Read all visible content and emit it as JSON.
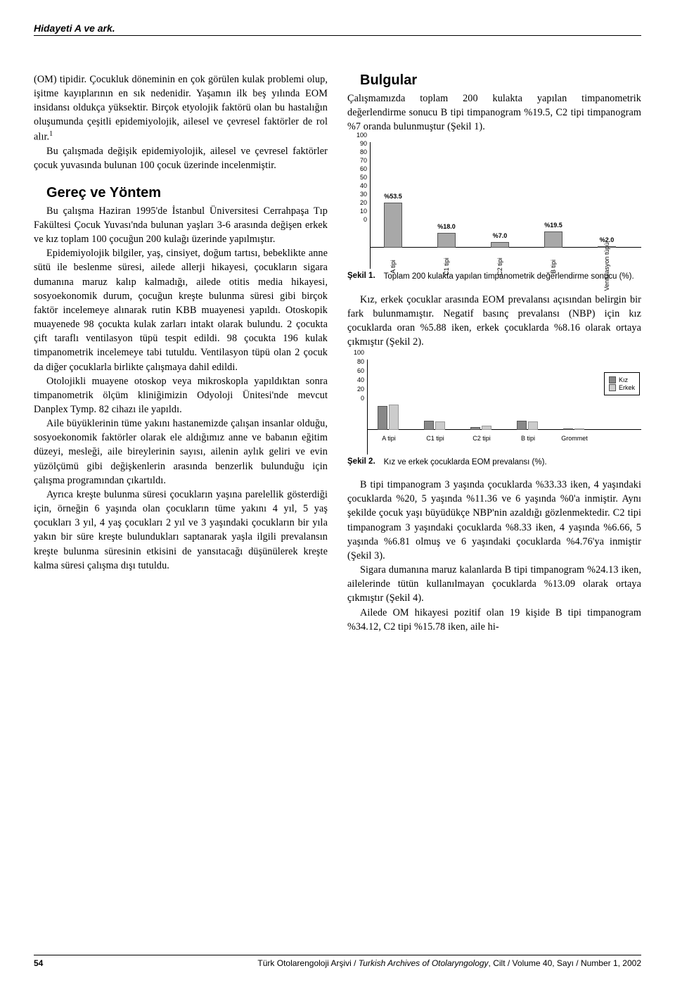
{
  "running_head": "Hidayeti A ve ark.",
  "left": {
    "p1": "(OM) tipidir. Çocukluk döneminin en çok görülen kulak problemi olup, işitme kayıplarının en sık nedenidir. Yaşamın ilk beş yılında EOM insidansı oldukça yüksektir. Birçok etyolojik faktörü olan bu hastalığın oluşumunda çeşitli epidemiyolojik, ailesel ve çevresel faktörler de rol alır.",
    "sup1": "1",
    "p2": "Bu çalışmada değişik epidemiyolojik, ailesel ve çevresel faktörler çocuk yuvasında bulunan 100 çocuk üzerinde incelenmiştir.",
    "h1": "Gereç ve Yöntem",
    "p3": "Bu çalışma Haziran 1995'de İstanbul Üniversitesi Cerrahpaşa Tıp Fakültesi Çocuk Yuvası'nda bulunan yaşları 3-6 arasında değişen erkek ve kız toplam 100 çocuğun 200 kulağı üzerinde yapılmıştır.",
    "p4": "Epidemiyolojik bilgiler, yaş, cinsiyet, doğum tartısı, bebeklikte anne sütü ile beslenme süresi, ailede allerji hikayesi, çocukların sigara dumanına maruz kalıp kalmadığı, ailede otitis media hikayesi, sosyoekonomik durum, çocuğun kreşte bulunma süresi gibi birçok faktör incelemeye alınarak rutin KBB muayenesi yapıldı. Otoskopik muayenede 98 çocukta kulak zarları intakt olarak bulundu. 2 çocukta çift taraflı ventilasyon tüpü tespit edildi. 98 çocukta 196 kulak timpanometrik incelemeye tabi tutuldu. Ventilasyon tüpü olan 2 çocuk da diğer çocuklarla birlikte çalışmaya dahil edildi.",
    "p5": "Otolojikli muayene otoskop veya mikroskopla yapıldıktan sonra timpanometrik ölçüm kliniğimizin Odyoloji Ünitesi'nde mevcut Danplex Tymp. 82 cihazı ile yapıldı.",
    "p6": "Aile büyüklerinin tüme yakını hastanemizde çalışan insanlar olduğu, sosyoekonomik faktörler olarak ele aldığımız anne ve babanın eğitim düzeyi, mesleği, aile bireylerinin sayısı, ailenin aylık geliri ve evin yüzölçümü gibi değişkenlerin arasında benzerlik bulunduğu için çalışma programından çıkartıldı.",
    "p7": "Ayrıca kreşte bulunma süresi çocukların yaşına parelellik gösterdiği için, örneğin 6 yaşında olan çocukların tüme yakını 4 yıl, 5 yaş çocukları 3 yıl, 4 yaş çocukları 2 yıl ve 3 yaşındaki çocukların bir yıla yakın bir süre kreşte bulundukları saptanarak yaşla ilgili prevalansın kreşte bulunma süresinin etkisini de yansıtacağı düşünülerek kreşte kalma süresi çalışma dışı tutuldu."
  },
  "right": {
    "h1": "Bulgular",
    "p1": "Çalışmamızda toplam 200 kulakta yapılan timpanometrik değerlendirme sonucu B tipi timpanogram %19.5, C2 tipi timpanogram %7 oranda bulunmuştur (Şekil 1).",
    "fig1": {
      "label": "Şekil 1.",
      "caption": "Toplam 200 kulakta yapılan timpanometrik değerlendirme sonucu (%).",
      "ymax": 100,
      "yticks": [
        0,
        10,
        20,
        30,
        40,
        50,
        60,
        70,
        80,
        90,
        100
      ],
      "categories": [
        "A tipi",
        "C1 tipi",
        "C2 tipi",
        "B tipi",
        "Ventülasyon tüpü"
      ],
      "values": [
        53.5,
        18.0,
        7.0,
        19.5,
        2.0
      ],
      "value_labels": [
        "%53.5",
        "%18.0",
        "%7.0",
        "%19.5",
        "%2.0"
      ],
      "bar_color": "#a8a8a8"
    },
    "p2": "Kız, erkek çocuklar arasında EOM prevalansı açısından belirgin bir fark bulunmamıştır. Negatif basınç prevalansı (NBP) için kız çocuklarda oran %5.88 iken, erkek çocuklarda %8.16 olarak ortaya çıkmıştır (Şekil 2).",
    "fig2": {
      "label": "Şekil 2.",
      "caption": "Kız ve erkek çocuklarda EOM prevalansı (%).",
      "ymax": 100,
      "yticks": [
        0,
        20,
        40,
        60,
        80,
        100
      ],
      "categories": [
        "A tipi",
        "C1 tipi",
        "C2 tipi",
        "B tipi",
        "Grommet"
      ],
      "series": [
        {
          "name": "Kız",
          "color": "#888888",
          "values": [
            52,
            19,
            6,
            20,
            2
          ]
        },
        {
          "name": "Erkek",
          "color": "#cccccc",
          "values": [
            55,
            18,
            8,
            18,
            2
          ]
        }
      ]
    },
    "p3": "B tipi timpanogram 3 yaşında çocuklarda %33.33 iken, 4 yaşındaki çocuklarda %20, 5 yaşında %11.36 ve 6 yaşında %0'a inmiştir. Aynı şekilde çocuk yaşı büyüdükçe NBP'nin azaldığı gözlenmektedir. C2 tipi timpanogram 3 yaşındaki çocuklarda %8.33 iken, 4 yaşında %6.66, 5 yaşında %6.81 olmuş ve 6 yaşındaki çocuklarda %4.76'ya inmiştir (Şekil 3).",
    "p4": "Sigara dumanına maruz kalanlarda B tipi timpanogram %24.13 iken, ailelerinde tütün kullanılmayan çocuklarda %13.09 olarak ortaya çıkmıştır (Şekil 4).",
    "p5": "Ailede OM hikayesi pozitif olan 19 kişide B tipi timpanogram %34.12, C2 tipi %15.78 iken, aile hi-"
  },
  "footer": {
    "page": "54",
    "journal_tr": "Türk Otolarengoloji Arşivi / ",
    "journal_en": "Turkish Archives of Otolaryngology",
    "citation_tail": ", Cilt / Volume 40, Sayı / Number 1, 2002"
  }
}
